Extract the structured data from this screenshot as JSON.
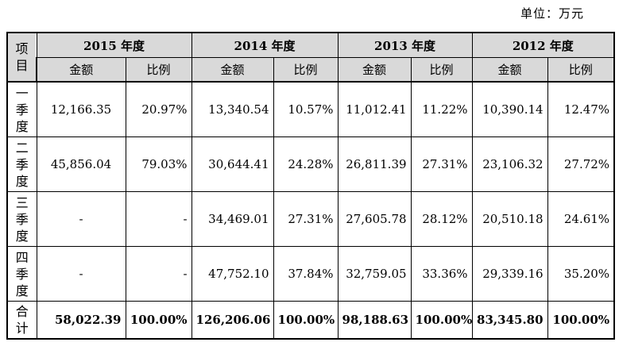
{
  "unit_label": "单位：万元",
  "header": {
    "item_label": [
      "项",
      "目"
    ],
    "years": [
      "2015 年度",
      "2014 年度",
      "2013 年度",
      "2012 年度"
    ],
    "amount_label": "金额",
    "ratio_label": "比例"
  },
  "rows": [
    {
      "label": [
        "一",
        "季",
        "度"
      ],
      "cells": [
        "12,166.35",
        "20.97%",
        "13,340.54",
        "10.57%",
        "11,012.41",
        "11.22%",
        "10,390.14",
        "12.47%"
      ]
    },
    {
      "label": [
        "二",
        "季",
        "度"
      ],
      "cells": [
        "45,856.04",
        "79.03%",
        "30,644.41",
        "24.28%",
        "26,811.39",
        "27.31%",
        "23,106.32",
        "27.72%"
      ]
    },
    {
      "label": [
        "三",
        "季",
        "度"
      ],
      "cells": [
        "-",
        "-",
        "34,469.01",
        "27.31%",
        "27,605.78",
        "28.12%",
        "20,510.18",
        "24.61%"
      ]
    },
    {
      "label": [
        "四",
        "季",
        "度"
      ],
      "cells": [
        "-",
        "-",
        "47,752.10",
        "37.84%",
        "32,759.05",
        "33.36%",
        "29,339.16",
        "35.20%"
      ]
    }
  ],
  "total": {
    "label": [
      "合",
      "计"
    ],
    "cells": [
      "58,022.39",
      "100.00%",
      "126,206.06",
      "100.00%",
      "98,188.63",
      "100.00%",
      "83,345.80",
      "100.00%"
    ]
  }
}
